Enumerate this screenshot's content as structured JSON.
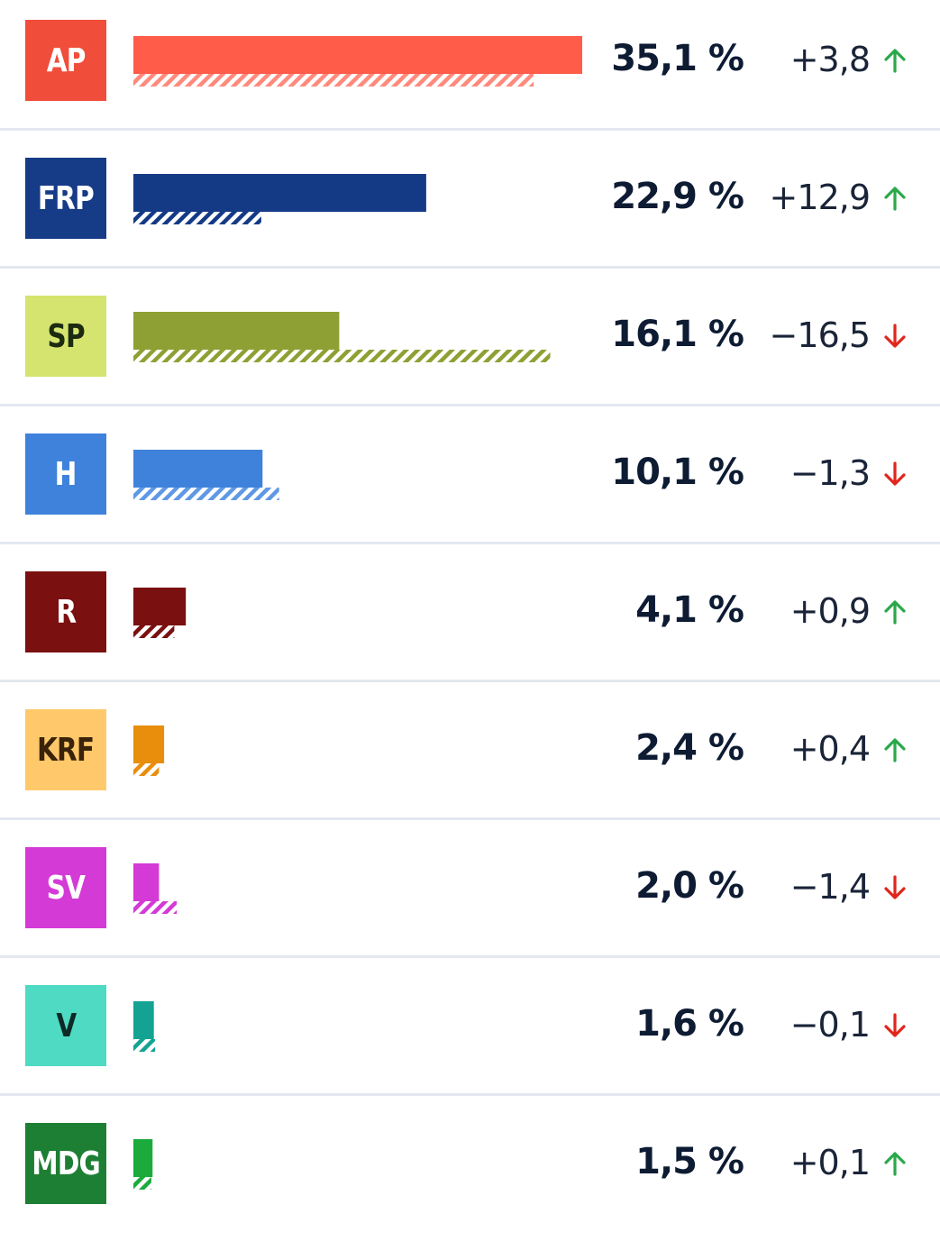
{
  "chart_data": {
    "type": "bar",
    "unit": "%",
    "max_value": 35.1,
    "rows": [
      {
        "party": "AP",
        "value": 35.1,
        "value_label": "35,1 %",
        "previous": 31.3,
        "change_label": "+3,8",
        "direction": "up",
        "badge_bg": "#f04e3b",
        "badge_fg": "#ffffff",
        "bar_color": "#ff5c4a",
        "hatch_color": "#ff8a7c"
      },
      {
        "party": "FRP",
        "value": 22.9,
        "value_label": "22,9 %",
        "previous": 10.0,
        "change_label": "+12,9",
        "direction": "up",
        "badge_bg": "#163b87",
        "badge_fg": "#ffffff",
        "bar_color": "#143a86",
        "hatch_color": "#143a86"
      },
      {
        "party": "SP",
        "value": 16.1,
        "value_label": "16,1 %",
        "previous": 32.6,
        "change_label": "−16,5",
        "direction": "down",
        "badge_bg": "#d4e46e",
        "badge_fg": "#1b2a10",
        "bar_color": "#8ea033",
        "hatch_color": "#8ea033"
      },
      {
        "party": "H",
        "value": 10.1,
        "value_label": "10,1 %",
        "previous": 11.4,
        "change_label": "−1,3",
        "direction": "down",
        "badge_bg": "#3f82dc",
        "badge_fg": "#ffffff",
        "bar_color": "#3f82dc",
        "hatch_color": "#5f98e4"
      },
      {
        "party": "R",
        "value": 4.1,
        "value_label": "4,1 %",
        "previous": 3.2,
        "change_label": "+0,9",
        "direction": "up",
        "badge_bg": "#7a1010",
        "badge_fg": "#ffffff",
        "bar_color": "#7a1010",
        "hatch_color": "#7a1010"
      },
      {
        "party": "KRF",
        "value": 2.4,
        "value_label": "2,4 %",
        "previous": 2.0,
        "change_label": "+0,4",
        "direction": "up",
        "badge_bg": "#ffc96b",
        "badge_fg": "#3a230a",
        "bar_color": "#e88e0c",
        "hatch_color": "#e88e0c"
      },
      {
        "party": "SV",
        "value": 2.0,
        "value_label": "2,0 %",
        "previous": 3.4,
        "change_label": "−1,4",
        "direction": "down",
        "badge_bg": "#d43ad6",
        "badge_fg": "#ffffff",
        "bar_color": "#d43ad6",
        "hatch_color": "#d43ad6"
      },
      {
        "party": "V",
        "value": 1.6,
        "value_label": "1,6 %",
        "previous": 1.7,
        "change_label": "−0,1",
        "direction": "down",
        "badge_bg": "#4fdac3",
        "badge_fg": "#0d2a26",
        "bar_color": "#14a392",
        "hatch_color": "#14a392"
      },
      {
        "party": "MDG",
        "value": 1.5,
        "value_label": "1,5 %",
        "previous": 1.4,
        "change_label": "+0,1",
        "direction": "up",
        "badge_bg": "#1d7f33",
        "badge_fg": "#ffffff",
        "bar_color": "#1aab3c",
        "hatch_color": "#1aab3c"
      }
    ]
  },
  "colors": {
    "up": "#2aa84a",
    "down": "#e0261b",
    "divider": "#e3e8ef",
    "text": "#0d1b33"
  },
  "icons": {
    "up": "arrow-up-icon",
    "down": "arrow-down-icon"
  }
}
